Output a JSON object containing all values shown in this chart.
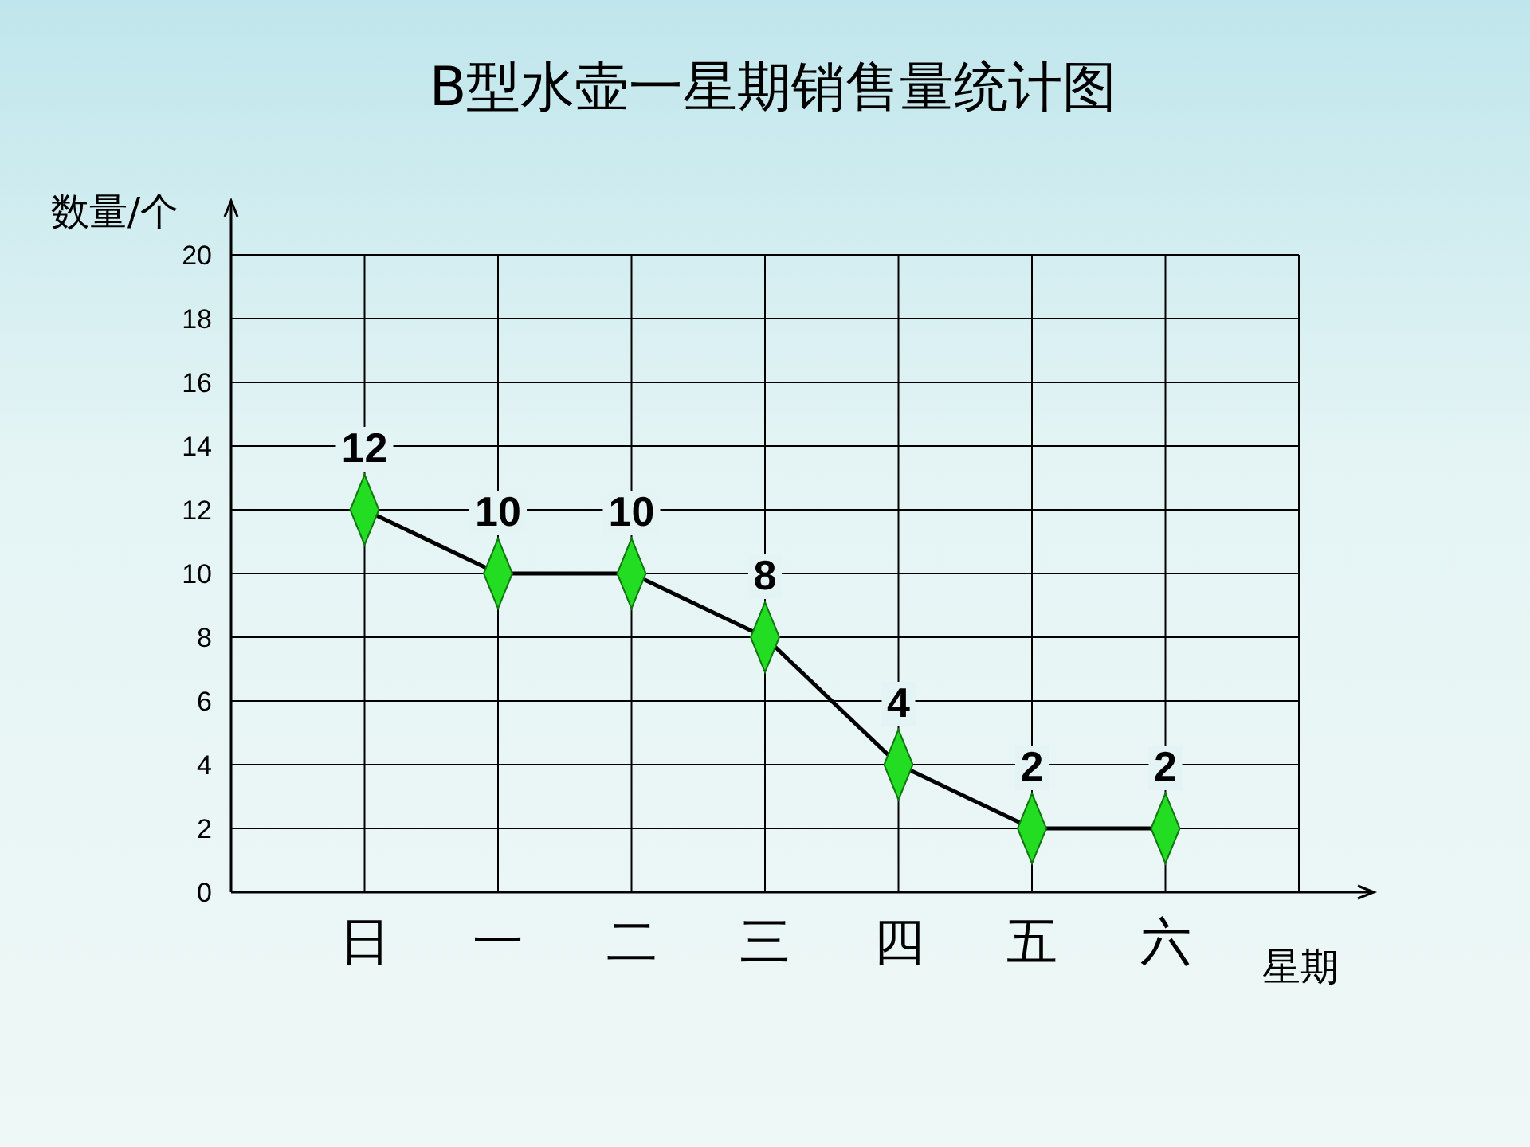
{
  "chart_data": {
    "type": "line",
    "title": "B型水壶一星期销售量统计图",
    "xlabel": "星期",
    "ylabel": "数量/个",
    "categories": [
      "日",
      "一",
      "二",
      "三",
      "四",
      "五",
      "六"
    ],
    "series": [
      {
        "color": "#000000",
        "values": [
          12,
          10,
          10,
          8,
          4,
          2,
          2
        ]
      }
    ],
    "ylim": [
      0,
      20
    ],
    "yticks": [
      0,
      2,
      4,
      6,
      8,
      10,
      12,
      14,
      16,
      18,
      20
    ],
    "grid": true,
    "marker": "diamond",
    "data_labels": true
  }
}
